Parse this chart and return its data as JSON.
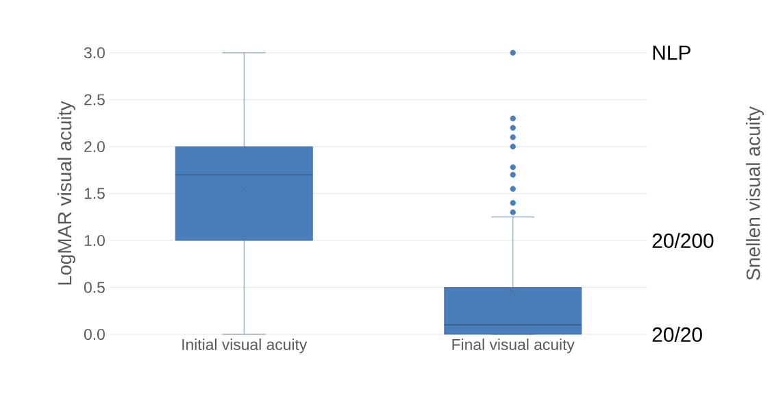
{
  "chart_data": {
    "type": "box",
    "categories": [
      "Initial visual acuity",
      "Final visual acuity"
    ],
    "ylabel": "LogMAR visual acuity",
    "ylim": [
      0,
      3.0
    ],
    "yticks": [
      {
        "value": 0,
        "label": "0.0"
      },
      {
        "value": 0.5,
        "label": "0.5"
      },
      {
        "value": 1,
        "label": "1.0"
      },
      {
        "value": 1.5,
        "label": "1.5"
      },
      {
        "value": 2,
        "label": "2.0"
      },
      {
        "value": 2.5,
        "label": "2.5"
      },
      {
        "value": 3,
        "label": "3.0"
      }
    ],
    "annotations": [
      "NLP",
      "20/200",
      "20/20",
      "Snellen visual acuity"
    ],
    "grid": "y",
    "color": "#4a7ebb",
    "boxes": [
      {
        "low": 0,
        "q1": 1.0,
        "median": 1.7,
        "q3": 2.0,
        "high": 3.0,
        "mean": 1.55
      },
      {
        "low": 0,
        "q1": 0,
        "median": 0.1,
        "q3": 0.5,
        "high": 1.25,
        "mean": 0.45,
        "outliers": [
          3.0,
          2.3,
          2.2,
          2.1,
          2.0,
          1.78,
          1.7,
          1.55,
          1.4,
          1.3
        ]
      }
    ]
  }
}
